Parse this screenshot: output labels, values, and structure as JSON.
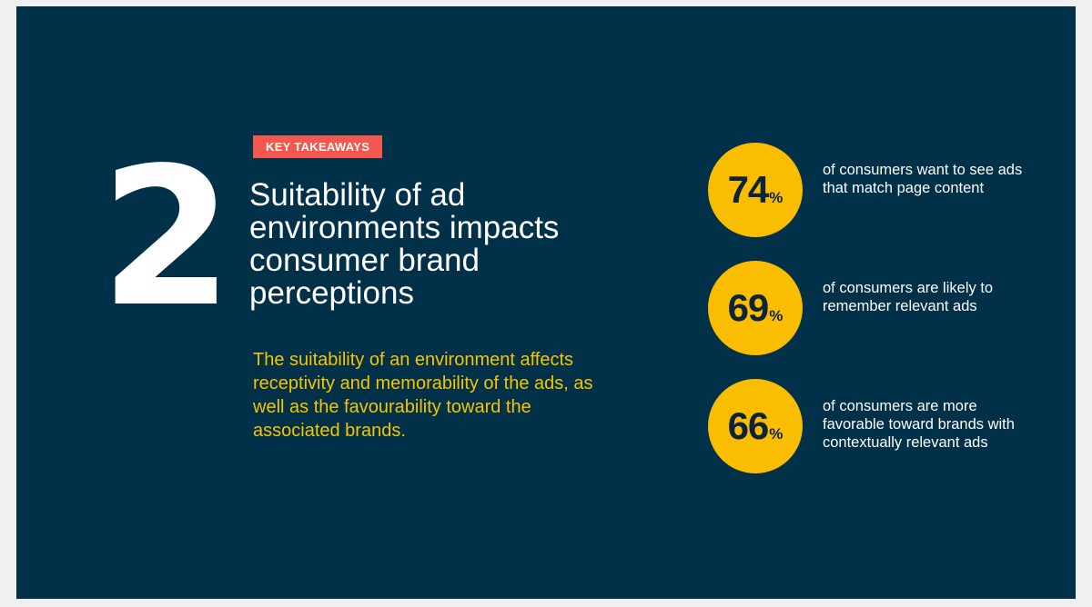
{
  "slide": {
    "number": "2",
    "badge": "KEY TAKEAWAYS",
    "headline": "Suitability of ad environments impacts consumer brand perceptions",
    "description": "The suitability of an environment affects receptivity and memorability of the ads, as well as the favourability toward the associated brands."
  },
  "stats": [
    {
      "value": "74",
      "unit": "%",
      "text": "of consumers want to see ads that match page content"
    },
    {
      "value": "69",
      "unit": "%",
      "text": "of consumers are likely to remember relevant ads"
    },
    {
      "value": "66",
      "unit": "%",
      "text": "of consumers are more favorable toward brands with contextually relevant ads"
    }
  ],
  "colors": {
    "background": "#013049",
    "badge": "#f4574d",
    "accent_text": "#f6c400",
    "circle": "#fbbd00"
  }
}
